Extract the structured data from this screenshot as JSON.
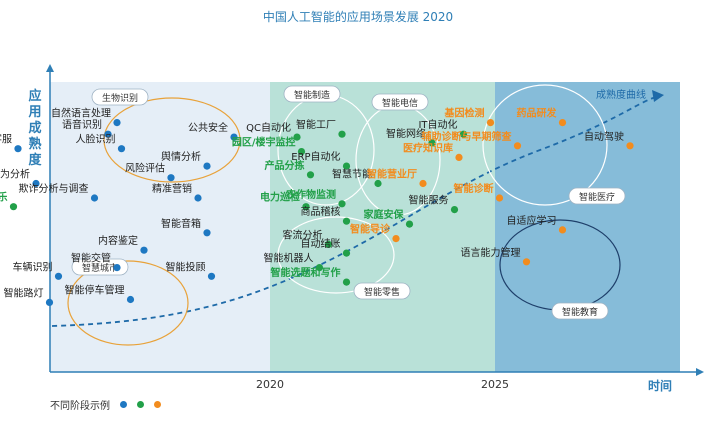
{
  "title": "中国人工智能的应用场景发展 2020",
  "chart_data": {
    "type": "scatter",
    "title": "中国人工智能的应用场景发展 2020",
    "ylabel": "应用成熟度",
    "xlabel": "时间",
    "x_ticks": [
      "2020",
      "2025"
    ],
    "curve_label": "成熟度曲线",
    "legend_label": "不同阶段示例",
    "colors": {
      "stage1": "#1e78c2",
      "stage2": "#22a049",
      "stage3": "#f28c1e",
      "zone1": "#e5eef7",
      "zone2": "#b9e1d8",
      "zone3": "#86bcd9"
    },
    "groups": [
      "生物识别",
      "智慧城市",
      "智能制造",
      "智能电信",
      "智能零售",
      "智能医疗",
      "智能教育"
    ],
    "points": [
      {
        "label": "自然语言处理",
        "stage": 1,
        "x": 2016.6,
        "y": 8.6,
        "highlight": false
      },
      {
        "label": "语音识别",
        "stage": 1,
        "x": 2016.4,
        "y": 8.2,
        "highlight": false
      },
      {
        "label": "人脸识别",
        "stage": 1,
        "x": 2016.7,
        "y": 7.7,
        "highlight": false
      },
      {
        "label": "公共安全",
        "stage": 1,
        "x": 2019.2,
        "y": 8.1,
        "highlight": false
      },
      {
        "label": "智能客服",
        "stage": 1,
        "x": 2014.4,
        "y": 7.7,
        "highlight": false
      },
      {
        "label": "舆情分析",
        "stage": 1,
        "x": 2018.6,
        "y": 7.1,
        "highlight": false
      },
      {
        "label": "风险评估",
        "stage": 1,
        "x": 2017.8,
        "y": 6.7,
        "highlight": false
      },
      {
        "label": "客户行为分析",
        "stage": 1,
        "x": 2014.8,
        "y": 6.5,
        "highlight": false
      },
      {
        "label": "欺诈分析与调查",
        "stage": 1,
        "x": 2016.1,
        "y": 6.0,
        "highlight": false
      },
      {
        "label": "精准营销",
        "stage": 1,
        "x": 2018.4,
        "y": 6.0,
        "highlight": false
      },
      {
        "label": "互动娱乐",
        "stage": 2,
        "x": 2014.3,
        "y": 5.7,
        "highlight": true
      },
      {
        "label": "智能音箱",
        "stage": 1,
        "x": 2018.6,
        "y": 4.8,
        "highlight": false
      },
      {
        "label": "内容鉴定",
        "stage": 1,
        "x": 2017.2,
        "y": 4.2,
        "highlight": false
      },
      {
        "label": "智能交管",
        "stage": 1,
        "x": 2016.6,
        "y": 3.6,
        "highlight": false
      },
      {
        "label": "车辆识别",
        "stage": 1,
        "x": 2015.3,
        "y": 3.3,
        "highlight": false
      },
      {
        "label": "智能投顾",
        "stage": 1,
        "x": 2018.7,
        "y": 3.3,
        "highlight": false
      },
      {
        "label": "智能停车管理",
        "stage": 1,
        "x": 2016.9,
        "y": 2.5,
        "highlight": false
      },
      {
        "label": "智能路灯",
        "stage": 1,
        "x": 2015.1,
        "y": 2.4,
        "highlight": false
      },
      {
        "label": "QC自动化",
        "stage": 2,
        "x": 2020.6,
        "y": 8.1,
        "highlight": false
      },
      {
        "label": "智能工厂",
        "stage": 2,
        "x": 2021.6,
        "y": 8.2,
        "highlight": false
      },
      {
        "label": "园区/楼宇监控",
        "stage": 2,
        "x": 2020.7,
        "y": 7.6,
        "highlight": true
      },
      {
        "label": "ERP自动化",
        "stage": 2,
        "x": 2021.7,
        "y": 7.1,
        "highlight": false
      },
      {
        "label": "产品分拣",
        "stage": 2,
        "x": 2020.9,
        "y": 6.8,
        "highlight": true
      },
      {
        "label": "智慧节能",
        "stage": 2,
        "x": 2022.4,
        "y": 6.5,
        "highlight": false
      },
      {
        "label": "电力巡检",
        "stage": 2,
        "x": 2020.8,
        "y": 5.7,
        "highlight": true
      },
      {
        "label": "农作物监测",
        "stage": 2,
        "x": 2021.6,
        "y": 5.8,
        "highlight": true
      },
      {
        "label": "商品稽核",
        "stage": 2,
        "x": 2021.7,
        "y": 5.2,
        "highlight": false
      },
      {
        "label": "客流分析",
        "stage": 2,
        "x": 2021.3,
        "y": 4.4,
        "highlight": false
      },
      {
        "label": "自动结账",
        "stage": 2,
        "x": 2021.7,
        "y": 4.1,
        "highlight": false
      },
      {
        "label": "智能机器人",
        "stage": 2,
        "x": 2021.1,
        "y": 3.6,
        "highlight": false
      },
      {
        "label": "智能选题和写作",
        "stage": 2,
        "x": 2021.7,
        "y": 3.1,
        "highlight": true
      },
      {
        "label": "智能网络",
        "stage": 2,
        "x": 2023.6,
        "y": 7.9,
        "highlight": false
      },
      {
        "label": "IT自动化",
        "stage": 2,
        "x": 2024.3,
        "y": 8.2,
        "highlight": false
      },
      {
        "label": "智能服务",
        "stage": 2,
        "x": 2024.1,
        "y": 5.6,
        "highlight": false
      },
      {
        "label": "家庭安保",
        "stage": 2,
        "x": 2023.1,
        "y": 5.1,
        "highlight": true
      },
      {
        "label": "智能营业厅",
        "stage": 3,
        "x": 2023.4,
        "y": 6.5,
        "highlight": true
      },
      {
        "label": "医疗知识库",
        "stage": 3,
        "x": 2024.2,
        "y": 7.4,
        "highlight": true
      },
      {
        "label": "智能导诊",
        "stage": 3,
        "x": 2022.8,
        "y": 4.6,
        "highlight": true
      },
      {
        "label": "基因检测",
        "stage": 3,
        "x": 2024.9,
        "y": 8.6,
        "highlight": true
      },
      {
        "label": "药品研发",
        "stage": 3,
        "x": 2026.5,
        "y": 8.6,
        "highlight": true
      },
      {
        "label": "辅助诊断与早期筛查",
        "stage": 3,
        "x": 2025.5,
        "y": 7.8,
        "highlight": true
      },
      {
        "label": "智能诊断",
        "stage": 3,
        "x": 2025.1,
        "y": 6.0,
        "highlight": true
      },
      {
        "label": "自动驾驶",
        "stage": 3,
        "x": 2028.0,
        "y": 7.8,
        "highlight": false
      },
      {
        "label": "自适应学习",
        "stage": 3,
        "x": 2026.5,
        "y": 4.9,
        "highlight": false
      },
      {
        "label": "语言能力管理",
        "stage": 3,
        "x": 2025.7,
        "y": 3.8,
        "highlight": false
      }
    ]
  }
}
